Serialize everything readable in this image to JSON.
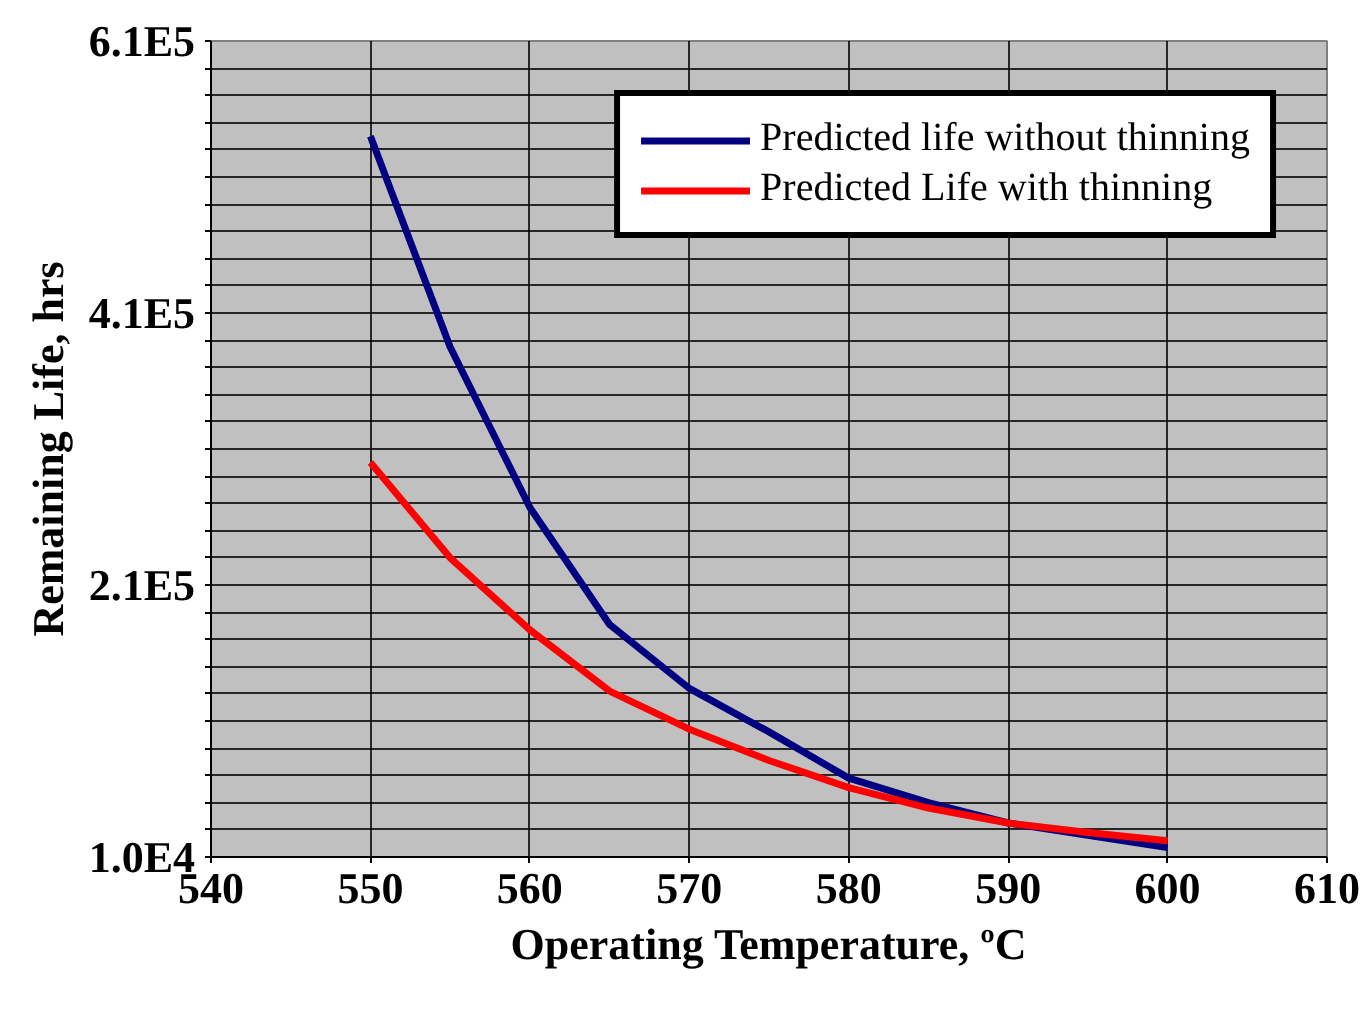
{
  "chart_data": {
    "type": "line",
    "xlabel": "Operating Temperature, ºC",
    "ylabel": "Remaining Life, hrs",
    "x": [
      550,
      555,
      560,
      565,
      570,
      575,
      580,
      585,
      590,
      595,
      600
    ],
    "series": [
      {
        "name": "Predicted life without thinning",
        "color": "#000080",
        "values": [
          540000,
          385000,
          267000,
          181000,
          134000,
          102000,
          68000,
          50000,
          35000,
          26000,
          17000
        ]
      },
      {
        "name": "Predicted Life with thinning",
        "color": "#ff0000",
        "values": [
          300000,
          230000,
          177000,
          132000,
          104000,
          81000,
          61000,
          46000,
          35000,
          28000,
          22000
        ]
      }
    ],
    "xlim": [
      540,
      610
    ],
    "xticks": [
      540,
      550,
      560,
      570,
      580,
      590,
      600,
      610
    ],
    "ylim": [
      10000,
      610000
    ],
    "yticks": [
      {
        "value": 10000,
        "label": "1.0E4"
      },
      {
        "value": 30000,
        "label": null
      },
      {
        "value": 50000,
        "label": null
      },
      {
        "value": 70000,
        "label": null
      },
      {
        "value": 90000,
        "label": null
      },
      {
        "value": 110000,
        "label": null
      },
      {
        "value": 130000,
        "label": null
      },
      {
        "value": 150000,
        "label": null
      },
      {
        "value": 170000,
        "label": null
      },
      {
        "value": 190000,
        "label": null
      },
      {
        "value": 210000,
        "label": "2.1E5"
      },
      {
        "value": 230000,
        "label": null
      },
      {
        "value": 250000,
        "label": null
      },
      {
        "value": 270000,
        "label": null
      },
      {
        "value": 290000,
        "label": null
      },
      {
        "value": 310000,
        "label": null
      },
      {
        "value": 330000,
        "label": null
      },
      {
        "value": 350000,
        "label": null
      },
      {
        "value": 370000,
        "label": null
      },
      {
        "value": 390000,
        "label": null
      },
      {
        "value": 410000,
        "label": "4.1E5"
      },
      {
        "value": 430000,
        "label": null
      },
      {
        "value": 450000,
        "label": null
      },
      {
        "value": 470000,
        "label": null
      },
      {
        "value": 490000,
        "label": null
      },
      {
        "value": 510000,
        "label": null
      },
      {
        "value": 530000,
        "label": null
      },
      {
        "value": 550000,
        "label": null
      },
      {
        "value": 570000,
        "label": null
      },
      {
        "value": 590000,
        "label": null
      },
      {
        "value": 610000,
        "label": "6.1E5"
      }
    ],
    "grid": true,
    "legend": "top right",
    "marker": "none",
    "line_style": "solid"
  }
}
